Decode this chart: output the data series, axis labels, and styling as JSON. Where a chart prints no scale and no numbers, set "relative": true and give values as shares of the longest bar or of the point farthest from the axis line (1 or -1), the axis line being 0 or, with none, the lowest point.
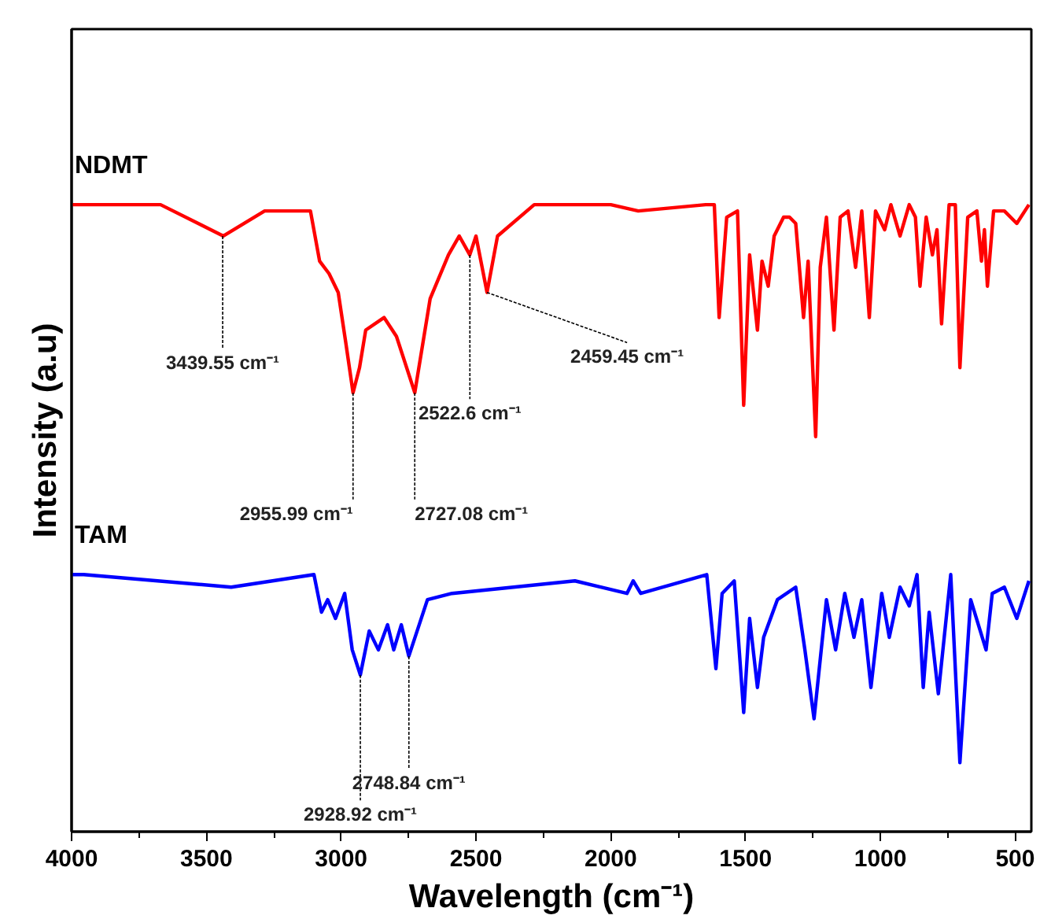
{
  "chart_data": {
    "type": "line",
    "xlabel": "Wavelength (cm⁻¹)",
    "ylabel": "Intensity (a.u)",
    "relative": true,
    "tick_labels": "x",
    "xlim": [
      4000,
      440
    ],
    "xticks": [
      4000,
      {
        "value": 3750,
        "label": null
      },
      3500,
      {
        "value": 3250,
        "label": null
      },
      3000,
      {
        "value": 2750,
        "label": null
      },
      2500,
      {
        "value": 2250,
        "label": null
      },
      2000,
      {
        "value": 1750,
        "label": null
      },
      1500,
      {
        "value": 1250,
        "label": null
      },
      1000,
      {
        "value": 750,
        "label": null
      },
      500
    ],
    "series": [
      {
        "name": "NDMT",
        "color": "#ff0000",
        "x": [
          4000,
          3670,
          3437,
          3284,
          3114,
          3080,
          3045,
          3011,
          2983,
          2956,
          2932,
          2909,
          2841,
          2795,
          2727,
          2670,
          2602,
          2562,
          2523,
          2500,
          2459,
          2420,
          2284,
          2000,
          1898,
          1648,
          1616,
          1598,
          1570,
          1530,
          1507,
          1485,
          1473,
          1456,
          1439,
          1416,
          1394,
          1359,
          1337,
          1314,
          1285,
          1268,
          1240,
          1223,
          1200,
          1172,
          1149,
          1120,
          1092,
          1069,
          1041,
          1018,
          984,
          961,
          927,
          893,
          870,
          853,
          830,
          807,
          790,
          773,
          745,
          722,
          705,
          676,
          642,
          625,
          614,
          603,
          580,
          540,
          494,
          449
        ],
        "values": [
          1.0,
          1.0,
          0.95,
          0.99,
          0.99,
          0.91,
          0.89,
          0.86,
          0.78,
          0.7,
          0.74,
          0.8,
          0.82,
          0.79,
          0.7,
          0.85,
          0.92,
          0.95,
          0.92,
          0.95,
          0.86,
          0.95,
          1.0,
          1.0,
          0.99,
          1.0,
          1.0,
          0.82,
          0.98,
          0.99,
          0.68,
          0.92,
          0.87,
          0.8,
          0.91,
          0.87,
          0.95,
          0.98,
          0.98,
          0.97,
          0.82,
          0.91,
          0.63,
          0.9,
          0.98,
          0.8,
          0.98,
          0.99,
          0.9,
          0.99,
          0.82,
          0.99,
          0.96,
          1.0,
          0.95,
          1.0,
          0.98,
          0.87,
          0.98,
          0.92,
          0.96,
          0.81,
          1.0,
          1.0,
          0.74,
          0.98,
          0.99,
          0.91,
          0.96,
          0.87,
          0.99,
          0.99,
          0.97,
          1.0
        ]
      },
      {
        "name": "TAM",
        "color": "#0000ff",
        "x": [
          4000,
          3955,
          3408,
          3101,
          3073,
          3050,
          3021,
          2987,
          2959,
          2929,
          2896,
          2862,
          2828,
          2805,
          2777,
          2749,
          2680,
          2589,
          2133,
          1940,
          1917,
          1889,
          1644,
          1610,
          1587,
          1542,
          1507,
          1485,
          1456,
          1433,
          1382,
          1314,
          1280,
          1246,
          1200,
          1166,
          1132,
          1098,
          1069,
          1035,
          995,
          967,
          927,
          893,
          864,
          841,
          819,
          785,
          739,
          705,
          665,
          608,
          585,
          540,
          494,
          449
        ],
        "values": [
          0.41,
          0.41,
          0.39,
          0.41,
          0.35,
          0.37,
          0.34,
          0.38,
          0.29,
          0.25,
          0.32,
          0.29,
          0.33,
          0.29,
          0.33,
          0.28,
          0.37,
          0.38,
          0.4,
          0.38,
          0.4,
          0.38,
          0.41,
          0.26,
          0.38,
          0.4,
          0.19,
          0.34,
          0.23,
          0.31,
          0.37,
          0.39,
          0.29,
          0.18,
          0.37,
          0.29,
          0.38,
          0.31,
          0.37,
          0.23,
          0.38,
          0.31,
          0.39,
          0.36,
          0.41,
          0.23,
          0.35,
          0.22,
          0.41,
          0.11,
          0.37,
          0.29,
          0.38,
          0.39,
          0.34,
          0.4
        ]
      }
    ],
    "annotations": [
      {
        "text": "3439.55 cm⁻¹",
        "x": 3439.55,
        "y": 0.95
      },
      {
        "text": "2955.99 cm⁻¹",
        "x": 2955.99,
        "y": 0.7
      },
      {
        "text": "2727.08 cm⁻¹",
        "x": 2727.08,
        "y": 0.7
      },
      {
        "text": "2522.6 cm⁻¹",
        "x": 2522.6,
        "y": 0.92
      },
      {
        "text": "2459.45 cm⁻¹",
        "x": 2459.45,
        "y": 0.86
      },
      {
        "text": "2928.92 cm⁻¹",
        "x": 2928.92,
        "y": 0.25
      },
      {
        "text": "2748.84 cm⁻¹",
        "x": 2748.84,
        "y": 0.28
      }
    ]
  }
}
